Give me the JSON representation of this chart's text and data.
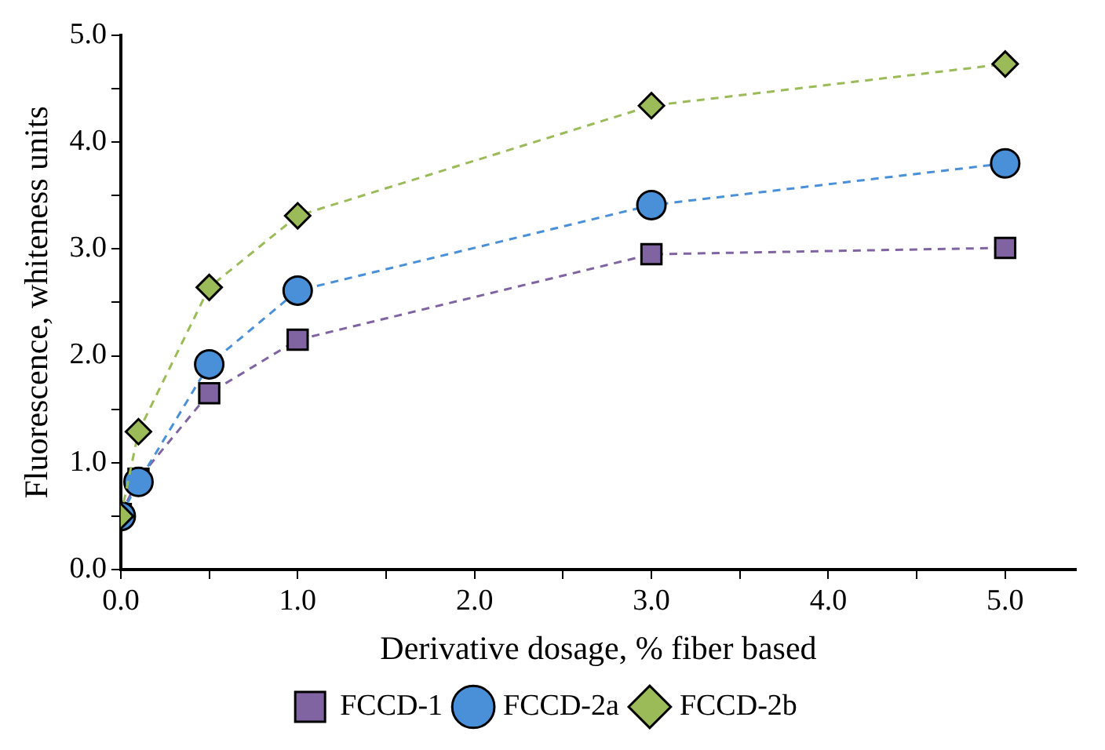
{
  "chart_data": {
    "type": "line",
    "xlabel": "Derivative dosage, % fiber based",
    "ylabel": "Fluorescence, whiteness units",
    "x": [
      0,
      0.1,
      0.5,
      1,
      3,
      5
    ],
    "series": [
      {
        "name": "FCCD-1",
        "color": "#8064a2",
        "marker": "square",
        "values": [
          0.52,
          0.85,
          1.65,
          2.15,
          2.95,
          3.01
        ]
      },
      {
        "name": "FCCD-2a",
        "color": "#4a90d9",
        "marker": "circle",
        "values": [
          0.5,
          0.82,
          1.92,
          2.61,
          3.41,
          3.8
        ]
      },
      {
        "name": "FCCD-2b",
        "color": "#9bbb59",
        "marker": "diamond",
        "values": [
          0.5,
          1.29,
          2.64,
          3.31,
          4.34,
          4.73
        ]
      }
    ],
    "xlim": [
      0,
      5.4
    ],
    "ylim": [
      0,
      5
    ],
    "xticks": [
      {
        "value": 0,
        "label": "0.0"
      },
      {
        "value": 0.5,
        "label": null
      },
      {
        "value": 1,
        "label": "1.0"
      },
      {
        "value": 1.5,
        "label": null
      },
      {
        "value": 2,
        "label": "2.0"
      },
      {
        "value": 2.5,
        "label": null
      },
      {
        "value": 3,
        "label": "3.0"
      },
      {
        "value": 3.5,
        "label": null
      },
      {
        "value": 4,
        "label": "4.0"
      },
      {
        "value": 4.5,
        "label": null
      },
      {
        "value": 5,
        "label": "5.0"
      }
    ],
    "yticks": [
      {
        "value": 0,
        "label": "0.0"
      },
      {
        "value": 0.5,
        "label": null
      },
      {
        "value": 1,
        "label": "1.0"
      },
      {
        "value": 1.5,
        "label": null
      },
      {
        "value": 2,
        "label": "2.0"
      },
      {
        "value": 2.5,
        "label": null
      },
      {
        "value": 3,
        "label": "3.0"
      },
      {
        "value": 3.5,
        "label": null
      },
      {
        "value": 4,
        "label": "4.0"
      },
      {
        "value": 4.5,
        "label": null
      },
      {
        "value": 5,
        "label": "5.0"
      }
    ],
    "grid": false,
    "legend": "bottom",
    "line_style": "dashed"
  }
}
